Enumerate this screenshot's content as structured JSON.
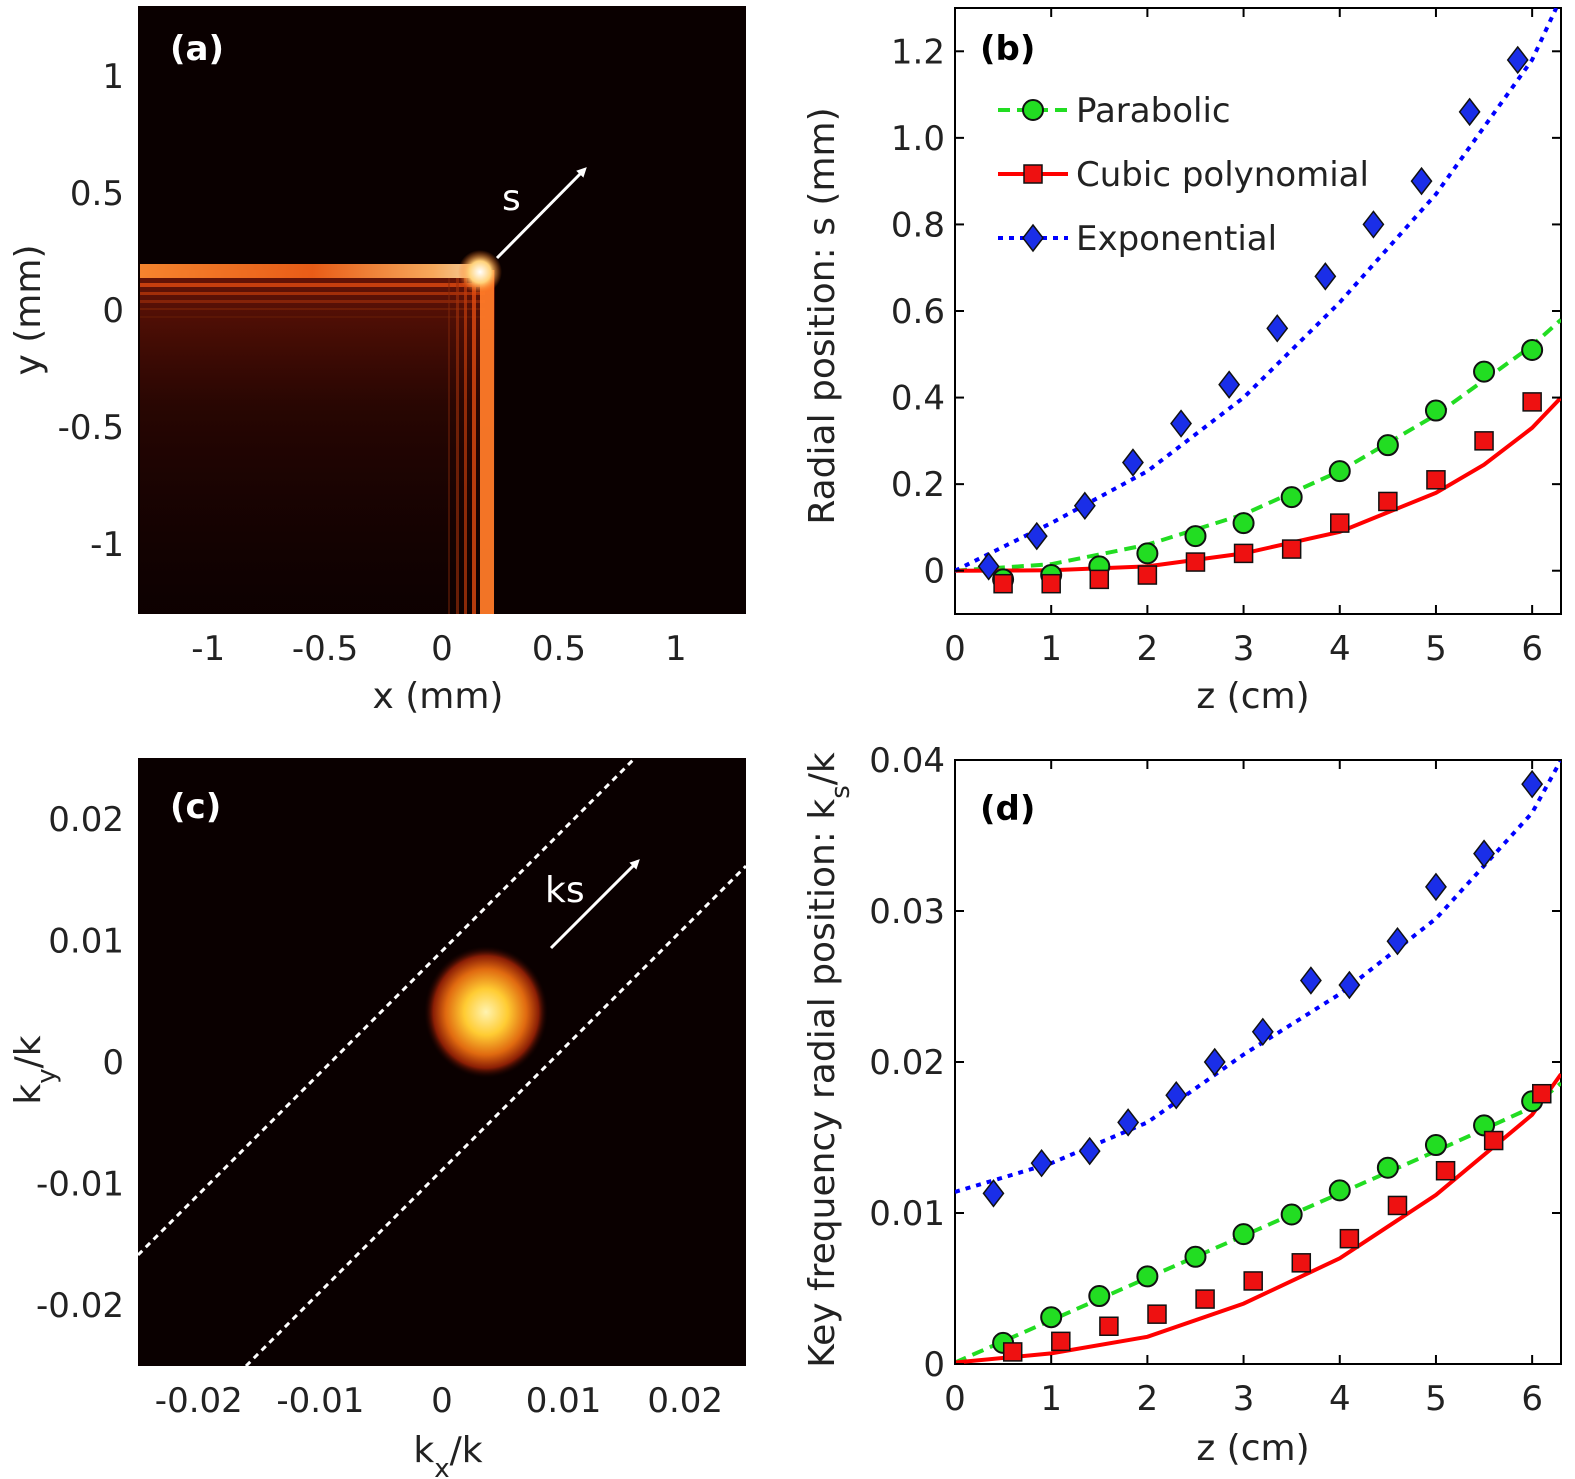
{
  "chart_data": [
    {
      "panel": "a",
      "type": "heatmap",
      "label": "(a)",
      "xlabel": "x (mm)",
      "ylabel": "y (mm)",
      "xlim": [
        -1.3,
        1.3
      ],
      "ylim": [
        -1.3,
        1.3
      ],
      "xticks": [
        -1,
        -0.5,
        0,
        0.5,
        1
      ],
      "xtick_labels": [
        "-1",
        "-0.5",
        "0",
        "0.5",
        "1"
      ],
      "yticks": [
        1,
        0.5,
        0,
        -0.5,
        -1
      ],
      "ytick_labels": [
        "1",
        "0.5",
        "0",
        "-0.5",
        "-1"
      ],
      "annotation": "s"
    },
    {
      "panel": "b",
      "type": "scatter",
      "label": "(b)",
      "xlabel": "z (cm)",
      "ylabel": "Radial position: s (mm)",
      "xlim": [
        0,
        6.3
      ],
      "ylim": [
        -0.1,
        1.3
      ],
      "xticks": [
        0,
        1,
        2,
        3,
        4,
        5,
        6
      ],
      "xtick_labels": [
        "0",
        "1",
        "2",
        "3",
        "4",
        "5",
        "6"
      ],
      "yticks": [
        0,
        0.2,
        0.4,
        0.6,
        0.8,
        1.0,
        1.2
      ],
      "ytick_labels": [
        "0",
        "0.2",
        "0.4",
        "0.6",
        "0.8",
        "1.0",
        "1.2"
      ],
      "legend": [
        "Parabolic",
        "Cubic polynomial",
        "Exponential"
      ],
      "legend_position": "top-left",
      "series": [
        {
          "name": "Parabolic",
          "color": "#22dd22",
          "marker": "circle",
          "x": [
            0.5,
            1.0,
            1.5,
            2.0,
            2.5,
            3.0,
            3.5,
            4.0,
            4.5,
            5.0,
            5.5,
            6.0
          ],
          "y": [
            -0.02,
            -0.01,
            0.01,
            0.04,
            0.08,
            0.11,
            0.17,
            0.23,
            0.29,
            0.37,
            0.46,
            0.51
          ],
          "fit_x": [
            0,
            1,
            2,
            3,
            4,
            5,
            6,
            6.3
          ],
          "fit_y": [
            0,
            0.015,
            0.06,
            0.13,
            0.23,
            0.36,
            0.52,
            0.58
          ]
        },
        {
          "name": "Cubic polynomial",
          "color": "#ff0000",
          "marker": "square",
          "x": [
            0.5,
            1.0,
            1.5,
            2.0,
            2.5,
            3.0,
            3.5,
            4.0,
            4.5,
            5.0,
            5.5,
            6.0
          ],
          "y": [
            -0.03,
            -0.03,
            -0.02,
            -0.01,
            0.02,
            0.04,
            0.05,
            0.11,
            0.16,
            0.21,
            0.3,
            0.39
          ],
          "fit_x": [
            0,
            1,
            2,
            3,
            4,
            5,
            5.5,
            6,
            6.3
          ],
          "fit_y": [
            0,
            0.001,
            0.01,
            0.04,
            0.09,
            0.18,
            0.245,
            0.33,
            0.4
          ]
        },
        {
          "name": "Exponential",
          "color": "#0000ff",
          "marker": "diamond",
          "x": [
            0.35,
            0.85,
            1.35,
            1.85,
            2.35,
            2.85,
            3.35,
            3.85,
            4.35,
            4.85,
            5.35,
            5.85
          ],
          "y": [
            0.01,
            0.08,
            0.15,
            0.25,
            0.34,
            0.43,
            0.56,
            0.68,
            0.8,
            0.9,
            1.06,
            1.18
          ],
          "fit_x": [
            0,
            1,
            2,
            3,
            4,
            5,
            6,
            6.25
          ],
          "fit_y": [
            0,
            0.11,
            0.23,
            0.4,
            0.62,
            0.87,
            1.18,
            1.3
          ]
        }
      ]
    },
    {
      "panel": "c",
      "type": "heatmap",
      "label": "(c)",
      "xlabel": "k_x/k",
      "ylabel": "k_y/k",
      "xlim": [
        -0.025,
        0.025
      ],
      "ylim": [
        -0.025,
        0.025
      ],
      "xticks": [
        -0.02,
        -0.01,
        0,
        0.01,
        0.02
      ],
      "xtick_labels": [
        "-0.02",
        "-0.01",
        "0",
        "0.01",
        "0.02"
      ],
      "yticks": [
        0.02,
        0.01,
        0,
        -0.01,
        -0.02
      ],
      "ytick_labels": [
        "0.02",
        "0.01",
        "0",
        "-0.01",
        "-0.02"
      ],
      "annotation": "ks"
    },
    {
      "panel": "d",
      "type": "scatter",
      "label": "(d)",
      "xlabel": "z (cm)",
      "ylabel": "Key frequency radial position: k_s/k",
      "xlim": [
        0,
        6.3
      ],
      "ylim": [
        0,
        0.04
      ],
      "xticks": [
        0,
        1,
        2,
        3,
        4,
        5,
        6
      ],
      "xtick_labels": [
        "0",
        "1",
        "2",
        "3",
        "4",
        "5",
        "6"
      ],
      "yticks": [
        0,
        0.01,
        0.02,
        0.03,
        0.04
      ],
      "ytick_labels": [
        "0",
        "0.01",
        "0.02",
        "0.03",
        "0.04"
      ],
      "series": [
        {
          "name": "Parabolic",
          "color": "#22dd22",
          "marker": "circle",
          "x": [
            0.5,
            1.0,
            1.5,
            2.0,
            2.5,
            3.0,
            3.5,
            4.0,
            4.5,
            5.0,
            5.5,
            6.0
          ],
          "y": [
            0.0014,
            0.0031,
            0.0045,
            0.0058,
            0.0071,
            0.0086,
            0.0099,
            0.0115,
            0.013,
            0.0145,
            0.0158,
            0.0174
          ],
          "fit_x": [
            0,
            1,
            2,
            3,
            4,
            5,
            6,
            6.3
          ],
          "fit_y": [
            0.0001,
            0.0029,
            0.0057,
            0.0085,
            0.0113,
            0.0141,
            0.017,
            0.0186
          ]
        },
        {
          "name": "Cubic polynomial",
          "color": "#ff0000",
          "marker": "square",
          "x": [
            0.6,
            1.1,
            1.6,
            2.1,
            2.6,
            3.1,
            3.6,
            4.1,
            4.6,
            5.1,
            5.6,
            6.1
          ],
          "y": [
            0.0008,
            0.0015,
            0.0025,
            0.0033,
            0.0043,
            0.0055,
            0.0067,
            0.0083,
            0.0105,
            0.0128,
            0.0148,
            0.0179
          ],
          "fit_x": [
            0,
            1,
            2,
            3,
            4,
            5,
            6,
            6.3
          ],
          "fit_y": [
            0.0001,
            0.0007,
            0.0018,
            0.004,
            0.007,
            0.0112,
            0.0165,
            0.0192
          ]
        },
        {
          "name": "Exponential",
          "color": "#0000ff",
          "marker": "diamond",
          "x": [
            0.4,
            0.9,
            1.4,
            1.8,
            2.3,
            2.7,
            3.2,
            3.7,
            4.1,
            4.6,
            5.0,
            5.5,
            6.0
          ],
          "y": [
            0.0113,
            0.0133,
            0.0141,
            0.016,
            0.0178,
            0.02,
            0.022,
            0.0254,
            0.0251,
            0.028,
            0.0316,
            0.0338,
            0.0384
          ],
          "fit_x": [
            0,
            1,
            2,
            3,
            4,
            5,
            6,
            6.3
          ],
          "fit_y": [
            0.0114,
            0.0133,
            0.016,
            0.0205,
            0.0245,
            0.0295,
            0.0365,
            0.04
          ]
        }
      ]
    }
  ]
}
